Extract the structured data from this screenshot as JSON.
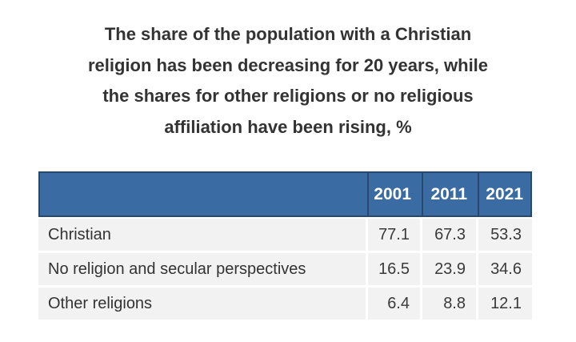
{
  "title_lines": [
    "The share of the population with a Christian",
    "religion has been decreasing for 20 years, while",
    "the shares for other religions or no religious",
    "affiliation have been rising, %"
  ],
  "table": {
    "column_headers": [
      "",
      "2001",
      "2011",
      "2021"
    ],
    "rows": [
      {
        "label": "Christian",
        "values": [
          "77.1",
          "67.3",
          "53.3"
        ]
      },
      {
        "label": "No religion and secular perspectives",
        "values": [
          "16.5",
          "23.9",
          "34.6"
        ]
      },
      {
        "label": "Other religions",
        "values": [
          "6.4",
          "8.8",
          "12.1"
        ]
      }
    ]
  },
  "colors": {
    "header_bg": "#3a6ba2",
    "header_border": "#29486b",
    "row_bg": "#f2f2f3",
    "separator": "#ffffff",
    "text": "#333333",
    "header_text": "#ffffff"
  },
  "chart_data": {
    "type": "table",
    "title": "The share of the population with a Christian religion has been decreasing for 20 years, while the shares for other religions or no religious affiliation have been rising, %",
    "categories": [
      "2001",
      "2011",
      "2021"
    ],
    "series": [
      {
        "name": "Christian",
        "values": [
          77.1,
          67.3,
          53.3
        ]
      },
      {
        "name": "No religion and secular perspectives",
        "values": [
          16.5,
          23.9,
          34.6
        ]
      },
      {
        "name": "Other religions",
        "values": [
          6.4,
          8.8,
          12.1
        ]
      }
    ],
    "unit": "%"
  }
}
